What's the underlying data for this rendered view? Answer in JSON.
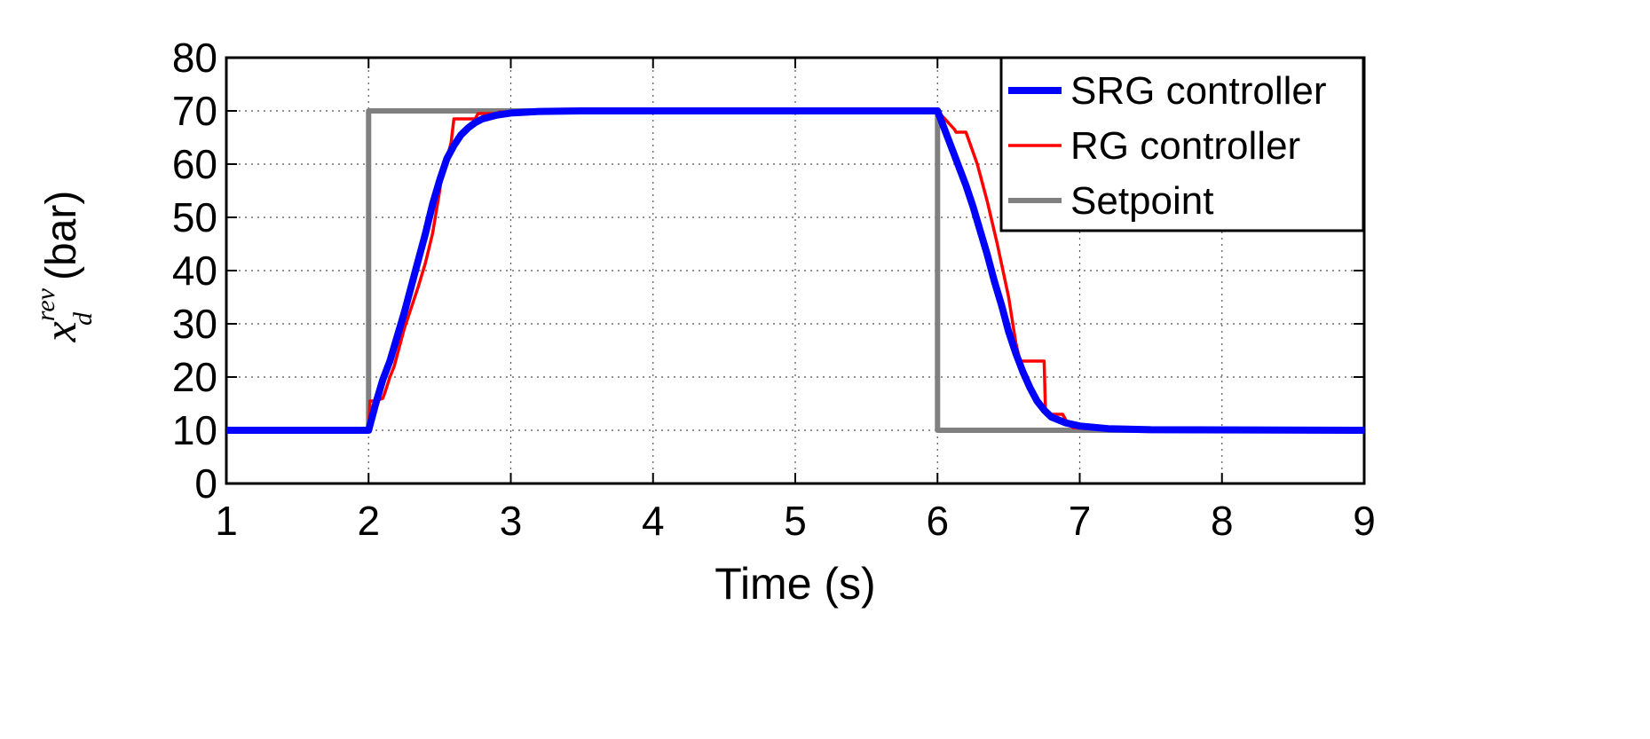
{
  "chart_data": {
    "type": "line",
    "title": "",
    "xlabel": "Time (s)",
    "ylabel": {
      "base": "x",
      "superscript": "rev",
      "subscript": "d",
      "unit": "(bar)"
    },
    "xlim": [
      1,
      9
    ],
    "ylim": [
      0,
      80
    ],
    "xticks": [
      "1",
      "2",
      "3",
      "4",
      "5",
      "6",
      "7",
      "8",
      "9"
    ],
    "yticks": [
      "0",
      "10",
      "20",
      "30",
      "40",
      "50",
      "60",
      "70",
      "80"
    ],
    "grid": true,
    "legend_position": "top-right",
    "series": [
      {
        "name": "SRG controller",
        "color": "#0000ff",
        "x": [
          1,
          2,
          2.05,
          2.1,
          2.15,
          2.2,
          2.25,
          2.3,
          2.35,
          2.4,
          2.45,
          2.5,
          2.55,
          2.6,
          2.65,
          2.7,
          2.75,
          2.8,
          2.9,
          3.0,
          3.2,
          3.5,
          4.0,
          5.0,
          6.0,
          6.05,
          6.1,
          6.15,
          6.2,
          6.25,
          6.3,
          6.35,
          6.4,
          6.45,
          6.5,
          6.55,
          6.6,
          6.65,
          6.7,
          6.75,
          6.8,
          6.9,
          7.0,
          7.2,
          7.5,
          9
        ],
        "y": [
          10,
          10,
          15,
          19.5,
          23,
          27.5,
          32,
          37,
          42,
          47,
          52.5,
          57,
          61,
          63.5,
          65.5,
          66.8,
          67.8,
          68.5,
          69.2,
          69.6,
          69.9,
          70,
          70,
          70,
          70,
          66.5,
          63,
          59.5,
          56,
          52,
          47.5,
          43,
          38,
          33.5,
          28.5,
          24.5,
          21,
          18,
          15.5,
          13.8,
          12.5,
          11.4,
          10.8,
          10.3,
          10.1,
          10
        ]
      },
      {
        "name": "RG controller",
        "color": "#ff0000",
        "x": [
          1,
          2,
          2.01,
          2.05,
          2.1,
          2.12,
          2.15,
          2.18,
          2.2,
          2.25,
          2.3,
          2.35,
          2.4,
          2.45,
          2.5,
          2.52,
          2.55,
          2.58,
          2.6,
          2.75,
          2.77,
          2.9,
          2.92,
          3.05,
          3.1,
          6.0,
          6.12,
          6.13,
          6.2,
          6.28,
          6.35,
          6.42,
          6.5,
          6.55,
          6.58,
          6.75,
          6.76,
          6.88,
          6.9,
          6.95,
          7.1,
          9
        ],
        "y": [
          10,
          10,
          15.5,
          15.5,
          16,
          17.5,
          20,
          22,
          24,
          29,
          33,
          37,
          41.5,
          47,
          55,
          59.5,
          61,
          64,
          68.5,
          68.5,
          69.5,
          69.5,
          69.8,
          69.8,
          70,
          70,
          66.5,
          66,
          66,
          60,
          53,
          45,
          35,
          26.5,
          23,
          23,
          13,
          13,
          12,
          10.5,
          10.2,
          10
        ]
      },
      {
        "name": "Setpoint",
        "color": "#808080",
        "x": [
          1,
          2,
          2,
          6,
          6,
          9
        ],
        "y": [
          10,
          10,
          70,
          70,
          10,
          10
        ]
      }
    ]
  }
}
